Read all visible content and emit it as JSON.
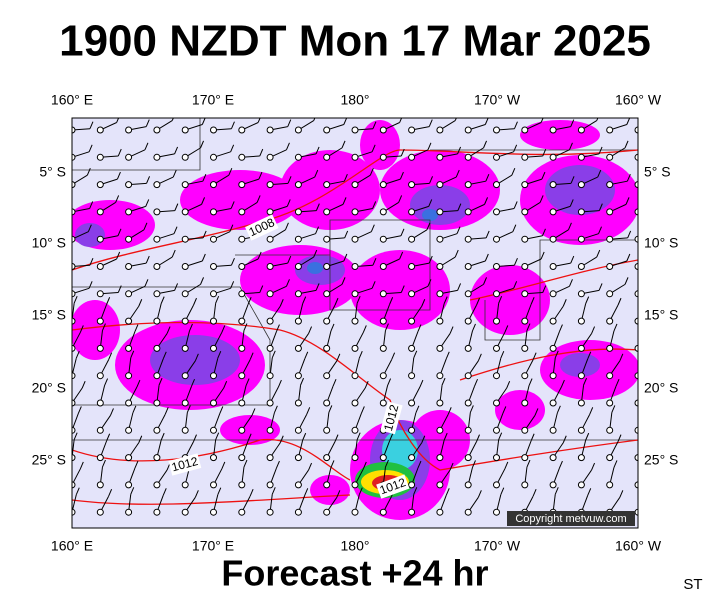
{
  "header": {
    "title": "1900 NZDT Mon 17 Mar 2025"
  },
  "map": {
    "lon_labels_top": [
      "160° E",
      "170° E",
      "180°",
      "170° W",
      "160° W"
    ],
    "lon_labels_bottom": [
      "160° E",
      "170° E",
      "180°",
      "170° W",
      "160° W"
    ],
    "lat_labels_left": [
      "5° S",
      "10° S",
      "15° S",
      "20° S",
      "25° S"
    ],
    "lat_labels_right": [
      "5° S",
      "10° S",
      "15° S",
      "20° S",
      "25° S"
    ],
    "isobar_labels": [
      "1008",
      "1012",
      "1012",
      "1012"
    ],
    "copyright": "Copyright metvuw.com"
  },
  "footer": {
    "caption": "Forecast +24 hr",
    "code": "ST"
  }
}
